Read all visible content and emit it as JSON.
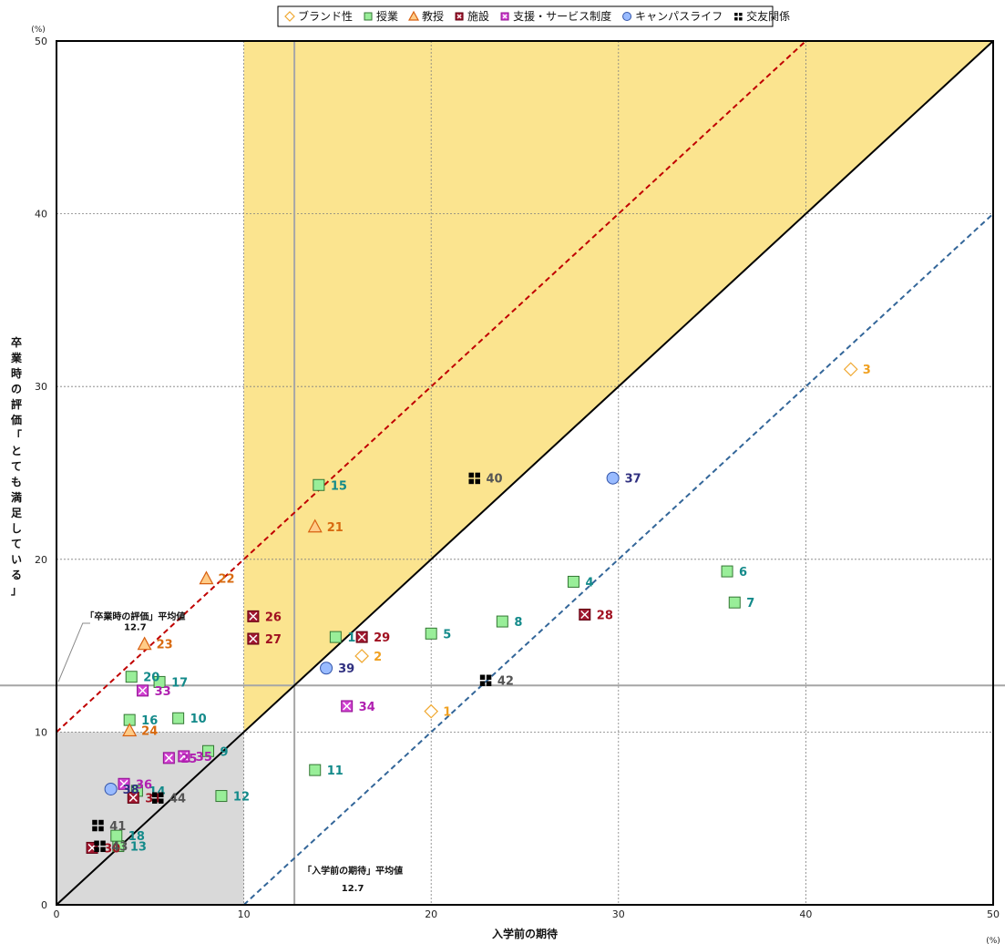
{
  "chart_data": {
    "type": "scatter",
    "xlabel": "入学前の期待",
    "ylabel": "卒業時の評価「とても満足している」",
    "x_unit": "(%)",
    "y_unit": "(%)",
    "xlim": [
      0,
      50
    ],
    "ylim": [
      0,
      50
    ],
    "xticks": [
      "0",
      "10",
      "20",
      "30",
      "40",
      "50"
    ],
    "yticks": [
      "0",
      "10",
      "20",
      "30",
      "40",
      "50"
    ],
    "grid": true,
    "legend_position": "top",
    "average_x_label": "「入学前の期待」平均値",
    "average_x_value": "12.7",
    "average_y_label": "「卒業時の評価」平均値",
    "average_y_value": "12.7",
    "average_x": 12.7,
    "average_y": 12.7,
    "reference_lines": [
      {
        "style": "solid",
        "color": "#000000",
        "x": [
          0,
          50
        ],
        "y": [
          0,
          50
        ]
      },
      {
        "style": "dashed",
        "color": "#c00000",
        "x": [
          0,
          40
        ],
        "y": [
          10,
          50
        ]
      },
      {
        "style": "dashed",
        "color": "#336699",
        "x": [
          10,
          50
        ],
        "y": [
          0,
          40
        ]
      }
    ],
    "shaded_regions": [
      {
        "color": "#fbe48f",
        "polygon": [
          [
            10,
            10
          ],
          [
            10,
            50
          ],
          [
            50,
            50
          ]
        ]
      },
      {
        "color": "#d9d9d9",
        "polygon": [
          [
            0,
            0
          ],
          [
            10,
            0
          ],
          [
            10,
            10
          ],
          [
            0,
            10
          ]
        ]
      }
    ],
    "series": [
      {
        "name": "ブランド性",
        "marker": "diamond",
        "fill": "#ffffff",
        "stroke": "#f0a830",
        "label_color": "#f0a020",
        "points": [
          {
            "label": "1",
            "x": 20.0,
            "y": 11.2
          },
          {
            "label": "2",
            "x": 16.3,
            "y": 14.4
          },
          {
            "label": "3",
            "x": 42.4,
            "y": 31.0
          }
        ]
      },
      {
        "name": "授業",
        "marker": "square",
        "fill": "#99ee99",
        "stroke": "#337733",
        "label_color": "#138a8a",
        "points": [
          {
            "label": "4",
            "x": 27.6,
            "y": 18.7
          },
          {
            "label": "5",
            "x": 20.0,
            "y": 15.7
          },
          {
            "label": "6",
            "x": 35.8,
            "y": 19.3
          },
          {
            "label": "7",
            "x": 36.2,
            "y": 17.5
          },
          {
            "label": "8",
            "x": 23.8,
            "y": 16.4
          },
          {
            "label": "9",
            "x": 8.1,
            "y": 8.9
          },
          {
            "label": "10",
            "x": 6.5,
            "y": 10.8
          },
          {
            "label": "11",
            "x": 13.8,
            "y": 7.8
          },
          {
            "label": "12",
            "x": 8.8,
            "y": 6.3
          },
          {
            "label": "13",
            "x": 3.3,
            "y": 3.4
          },
          {
            "label": "14",
            "x": 4.3,
            "y": 6.6
          },
          {
            "label": "15",
            "x": 14.0,
            "y": 24.3
          },
          {
            "label": "16",
            "x": 3.9,
            "y": 10.7
          },
          {
            "label": "17",
            "x": 5.5,
            "y": 12.9
          },
          {
            "label": "18",
            "x": 3.2,
            "y": 4.0
          },
          {
            "label": "19",
            "x": 14.9,
            "y": 15.5
          },
          {
            "label": "20",
            "x": 4.0,
            "y": 13.2
          }
        ]
      },
      {
        "name": "教授",
        "marker": "triangle",
        "fill": "#ffcc88",
        "stroke": "#d86010",
        "label_color": "#d86a10",
        "points": [
          {
            "label": "21",
            "x": 13.8,
            "y": 21.9
          },
          {
            "label": "22",
            "x": 8.0,
            "y": 18.9
          },
          {
            "label": "23",
            "x": 4.7,
            "y": 15.1
          },
          {
            "label": "24",
            "x": 3.9,
            "y": 10.1
          }
        ]
      },
      {
        "name": "施設",
        "marker": "xsquare",
        "fill": "#a01830",
        "stroke": "#600010",
        "label_color": "#a01020",
        "points": [
          {
            "label": "26",
            "x": 10.5,
            "y": 16.7
          },
          {
            "label": "27",
            "x": 10.5,
            "y": 15.4
          },
          {
            "label": "28",
            "x": 28.2,
            "y": 16.8
          },
          {
            "label": "29",
            "x": 16.3,
            "y": 15.5
          },
          {
            "label": "30",
            "x": 1.9,
            "y": 3.3
          },
          {
            "label": "31",
            "x": 4.1,
            "y": 6.2
          }
        ]
      },
      {
        "name": "支援・サービス制度",
        "marker": "xsquare",
        "fill": "#d040d0",
        "stroke": "#901090",
        "label_color": "#b020b0",
        "points": [
          {
            "label": "33",
            "x": 4.6,
            "y": 12.4
          },
          {
            "label": "34",
            "x": 15.5,
            "y": 11.5
          },
          {
            "label": "35",
            "x": 6.8,
            "y": 8.6
          },
          {
            "label": "36",
            "x": 3.6,
            "y": 7.0
          },
          {
            "label": "25",
            "x": 6.0,
            "y": 8.5
          }
        ]
      },
      {
        "name": "キャンパスライフ",
        "marker": "circle",
        "fill": "#99bbff",
        "stroke": "#3355aa",
        "label_color": "#303080",
        "points": [
          {
            "label": "37",
            "x": 29.7,
            "y": 24.7
          },
          {
            "label": "38",
            "x": 2.9,
            "y": 6.7
          },
          {
            "label": "39",
            "x": 14.4,
            "y": 13.7
          }
        ]
      },
      {
        "name": "交友関係",
        "marker": "quad",
        "fill": "#000000",
        "stroke": "#000000",
        "label_color": "#555555",
        "points": [
          {
            "label": "40",
            "x": 22.3,
            "y": 24.7
          },
          {
            "label": "41",
            "x": 2.2,
            "y": 4.6
          },
          {
            "label": "42",
            "x": 22.9,
            "y": 13.0
          },
          {
            "label": "43",
            "x": 2.3,
            "y": 3.4
          },
          {
            "label": "44",
            "x": 5.4,
            "y": 6.2
          }
        ]
      }
    ]
  }
}
